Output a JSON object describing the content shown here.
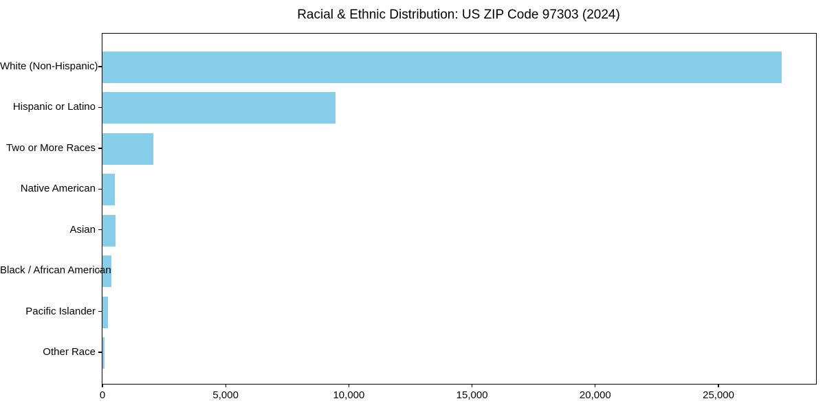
{
  "chart_data": {
    "type": "bar",
    "orientation": "horizontal",
    "title": "Racial & Ethnic Distribution: US ZIP Code 97303 (2024)",
    "categories": [
      "White (Non-Hispanic)",
      "Hispanic or Latino",
      "Two or More Races",
      "Native American",
      "Asian",
      "Black / African American",
      "Pacific Islander",
      "Other Race"
    ],
    "values": [
      27570,
      9450,
      2055,
      500,
      520,
      360,
      215,
      75
    ],
    "xlabel": "",
    "ylabel": "",
    "xlim": [
      0,
      28960
    ],
    "xticks": [
      0,
      5000,
      10000,
      15000,
      20000,
      25000
    ],
    "xtick_labels": [
      "0",
      "5,000",
      "10,000",
      "15,000",
      "20,000",
      "25,000"
    ],
    "bar_color": "#87CEEB",
    "spine_color": "#000000",
    "text_color": "#000000",
    "plot_background": "#ffffff",
    "grid": false,
    "legend": "none"
  }
}
